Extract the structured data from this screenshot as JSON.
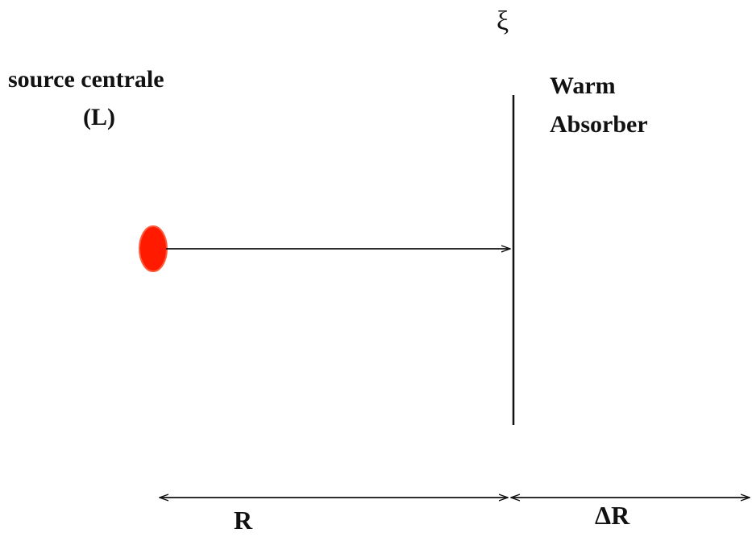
{
  "symbols": {
    "ionization_parameter": "ξ"
  },
  "source": {
    "title": "source centrale",
    "luminosity_symbol": "(L)"
  },
  "absorber": {
    "line1": "Warm",
    "line2": "Absorber"
  },
  "distances": {
    "radius": "R",
    "thickness": "ΔR"
  },
  "colors": {
    "source_fill": "#ff1a00",
    "source_stroke": "#ff5a3a",
    "line": "#111111",
    "background": "#ffffff"
  }
}
